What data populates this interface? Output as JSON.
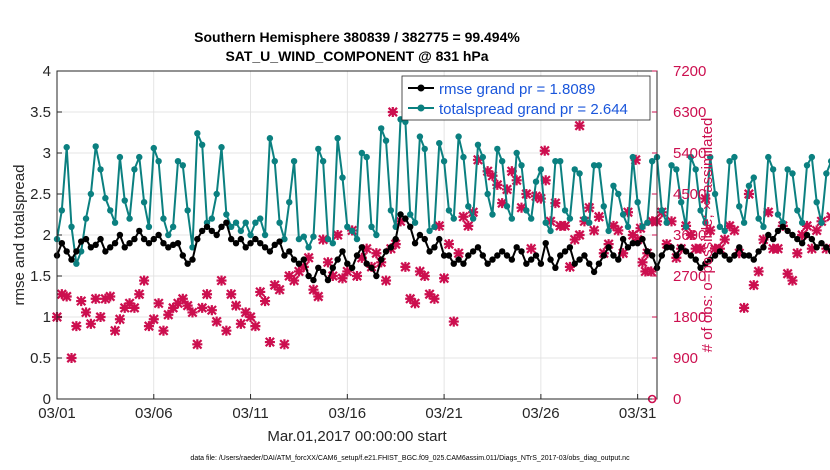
{
  "chart_data": {
    "type": "line",
    "title": "Southern Hemisphere 380839 / 382775 = 99.494%",
    "subtitle": "SAT_U_WIND_COMPONENT @ 831 hPa",
    "xlabel": "Mar.01,2017 00:00:00 start",
    "ylabel_left": "rmse and totalspread",
    "ylabel_right": "# of obs: o=possible; ×=assimilated",
    "footer": "data file: /Users/raeder/DAI/ATM_forcXX/CAM6_setup/f.e21.FHIST_BGC.f09_025.CAM6assim.011/Diags_NTrS_2017-03/obs_diag_output.nc",
    "x_ticks": [
      {
        "label": "03/01",
        "day": 1
      },
      {
        "label": "03/06",
        "day": 6
      },
      {
        "label": "03/11",
        "day": 11
      },
      {
        "label": "03/16",
        "day": 16
      },
      {
        "label": "03/21",
        "day": 21
      },
      {
        "label": "03/26",
        "day": 26
      },
      {
        "label": "03/31",
        "day": 31
      }
    ],
    "xlim": [
      1,
      32
    ],
    "ylim_left": [
      0,
      4
    ],
    "yticks_left": [
      "0",
      "0.5",
      "1",
      "1.5",
      "2",
      "2.5",
      "3",
      "3.5",
      "4"
    ],
    "ylim_right": [
      0,
      7200
    ],
    "yticks_right": [
      "0",
      "900",
      "1800",
      "2700",
      "3600",
      "4500",
      "5400",
      "6300",
      "7200"
    ],
    "colors": {
      "rmse": "#000000",
      "spread": "#0b8080",
      "obs": "#cc0f4f",
      "legend_text": "#1a56db",
      "right_axis": "#cc0f4f"
    },
    "legend": [
      {
        "label": "rmse grand pr = 1.8089",
        "series": "rmse"
      },
      {
        "label": "totalspread grand pr = 2.644",
        "series": "spread"
      }
    ],
    "x_start_day": 1,
    "x_step_days": 0.25,
    "series": [
      {
        "name": "rmse",
        "axis": "left",
        "values": [
          1.75,
          1.9,
          1.8,
          1.7,
          1.8,
          1.92,
          1.95,
          1.85,
          1.88,
          1.95,
          1.8,
          1.85,
          1.9,
          2.0,
          1.85,
          1.9,
          1.95,
          2.05,
          1.95,
          1.9,
          1.95,
          2.0,
          1.9,
          1.85,
          1.88,
          1.9,
          1.75,
          1.65,
          1.7,
          1.95,
          2.05,
          2.1,
          2.05,
          2.0,
          2.1,
          2.15,
          1.95,
          1.9,
          1.95,
          1.85,
          1.9,
          1.95,
          1.9,
          1.85,
          1.8,
          1.88,
          1.92,
          1.75,
          1.8,
          1.7,
          1.65,
          1.7,
          1.5,
          1.45,
          1.6,
          1.55,
          1.45,
          1.6,
          1.7,
          1.8,
          1.65,
          1.6,
          1.75,
          1.85,
          1.65,
          1.6,
          1.5,
          1.7,
          1.8,
          1.85,
          1.95,
          2.25,
          2.2,
          2.1,
          1.9,
          2.0,
          1.95,
          1.8,
          1.85,
          1.95,
          1.75,
          1.75,
          1.65,
          1.7,
          1.65,
          1.75,
          1.8,
          1.85,
          1.75,
          1.65,
          1.7,
          1.75,
          1.8,
          1.75,
          1.7,
          1.85,
          1.8,
          1.65,
          1.7,
          1.75,
          1.65,
          1.9,
          1.7,
          1.6,
          1.75,
          1.8,
          1.85,
          1.65,
          1.7,
          1.75,
          1.65,
          1.55,
          1.65,
          1.75,
          1.85,
          1.75,
          1.7,
          1.95,
          1.85,
          1.9,
          1.9,
          1.95,
          1.8,
          1.75,
          1.6,
          1.75,
          1.85,
          1.85,
          1.75,
          1.85,
          1.8,
          1.75,
          1.7,
          1.6,
          1.65,
          1.7,
          1.75,
          1.8,
          1.75,
          1.7,
          1.75,
          1.85,
          1.75,
          1.75,
          1.7,
          1.8,
          1.85,
          2.0,
          1.95,
          2.05,
          2.1,
          2.05,
          2.0,
          1.95,
          1.9,
          2.0,
          1.95,
          1.85,
          1.9,
          1.85,
          1.8,
          1.75,
          1.65,
          1.85,
          1.8,
          1.7,
          1.65,
          1.85,
          1.95,
          1.95,
          1.9,
          1.85,
          1.75,
          1.7,
          1.8,
          1.9,
          1.85,
          2.0,
          2.15,
          2.1,
          2.0,
          1.88,
          1.87
        ]
      },
      {
        "name": "totalspread",
        "axis": "left",
        "values": [
          1.95,
          2.3,
          3.07,
          2.1,
          1.65,
          1.8,
          2.2,
          2.5,
          3.08,
          2.8,
          2.45,
          2.3,
          2.15,
          2.95,
          2.42,
          2.2,
          2.8,
          2.95,
          2.4,
          2.1,
          3.06,
          2.9,
          2.2,
          2.0,
          2.1,
          2.9,
          2.85,
          2.3,
          1.85,
          3.24,
          3.1,
          2.15,
          2.2,
          2.5,
          3.07,
          2.25,
          2.1,
          2.15,
          2.05,
          2.15,
          2.0,
          2.15,
          2.2,
          2.0,
          3.18,
          2.9,
          2.15,
          1.95,
          2.4,
          2.9,
          1.95,
          1.98,
          1.85,
          1.98,
          3.05,
          2.9,
          1.95,
          1.9,
          3.18,
          2.7,
          2.1,
          2.05,
          1.95,
          3.0,
          2.95,
          2.1,
          2.0,
          3.3,
          3.15,
          2.3,
          2.1,
          3.41,
          3.38,
          2.25,
          2.15,
          3.2,
          3.05,
          2.05,
          2.1,
          3.12,
          2.9,
          2.3,
          2.2,
          3.2,
          2.95,
          2.35,
          2.2,
          3.1,
          2.95,
          2.5,
          2.25,
          3.05,
          2.9,
          2.35,
          2.2,
          3.0,
          2.85,
          2.3,
          2.2,
          2.65,
          2.8,
          2.15,
          2.05,
          2.9,
          2.9,
          2.3,
          2.2,
          2.8,
          2.75,
          2.2,
          2.15,
          2.85,
          2.85,
          2.35,
          2.05,
          2.6,
          2.5,
          2.25,
          2.1,
          2.95,
          2.4,
          2.1,
          2.15,
          2.9,
          2.95,
          2.3,
          2.15,
          2.85,
          2.8,
          2.4,
          2.1,
          2.95,
          2.8,
          2.3,
          2.15,
          2.95,
          2.5,
          2.1,
          2.05,
          2.9,
          2.95,
          2.35,
          2.15,
          2.6,
          2.7,
          2.2,
          2.1,
          2.95,
          2.8,
          2.25,
          2.15,
          2.8,
          2.75,
          2.3,
          2.15,
          2.85,
          2.95,
          2.4,
          2.15,
          2.75,
          2.9,
          2.45,
          2.2,
          2.85,
          2.95,
          2.5,
          2.2,
          2.85,
          2.9,
          2.35,
          2.2,
          2.75,
          2.8,
          2.5,
          2.3,
          2.8,
          2.9,
          2.5,
          2.3,
          3.0,
          3.1,
          2.55,
          2.2,
          2.9,
          3.02,
          2.5,
          2.15,
          3.15,
          3.2,
          3.22
        ]
      },
      {
        "name": "obs_assimilated",
        "axis": "right",
        "marker": "x",
        "values": [
          1800,
          2300,
          2250,
          900,
          1600,
          2150,
          1900,
          1650,
          2200,
          1800,
          2200,
          2250,
          1500,
          1750,
          2000,
          2100,
          2000,
          2300,
          2600,
          1600,
          1750,
          2100,
          1500,
          1850,
          2000,
          2100,
          2200,
          2050,
          1900,
          1200,
          2000,
          2300,
          1950,
          1700,
          2600,
          1500,
          2300,
          2050,
          1650,
          1900,
          1800,
          1600,
          2350,
          2150,
          1250,
          2500,
          2400,
          1200,
          2700,
          2600,
          2800,
          2900,
          3100,
          2400,
          2250,
          3500,
          3000,
          2700,
          3600,
          2650,
          2800,
          3700,
          2700,
          3100,
          3300,
          2900,
          3200,
          3000,
          2600,
          3300,
          3400,
          3900,
          2900,
          2200,
          2100,
          2800,
          2700,
          2300,
          2200,
          3800,
          2650,
          3400,
          1700,
          3200,
          4000,
          3800,
          4100,
          5250,
          6300,
          5000,
          4900,
          4700,
          4300,
          4600,
          5000,
          4800,
          4200,
          4500,
          3300,
          4450,
          4400,
          4800,
          3900,
          4300,
          3800,
          3800,
          2900,
          3500,
          3600,
          3900,
          4200,
          3700,
          4000,
          3200,
          3400,
          3800,
          3700,
          3200,
          4100,
          3600,
          3500,
          3000,
          3200,
          3900,
          3900,
          4100,
          3400,
          3900,
          3100,
          3300,
          3800,
          3600,
          3300,
          3300,
          4400,
          3700,
          3300,
          3300,
          3500,
          3800,
          3700,
          3200,
          2000,
          4500,
          2500,
          2800,
          3500,
          4100,
          3300,
          3300,
          3800,
          2750,
          2600,
          3200,
          3600,
          3800,
          3300,
          3700,
          3900,
          3300,
          4000,
          3100,
          4900,
          3800,
          3900,
          3200,
          4800,
          4800,
          5500,
          3600,
          4600,
          5300,
          3000,
          3200,
          4100,
          3600,
          3600,
          4300,
          3500,
          5400,
          2400,
          2900,
          3600,
          4200,
          1500,
          2800,
          3500,
          2800
        ]
      },
      {
        "name": "obs_assimilated_extra",
        "axis": "right",
        "marker": "x",
        "points": [
          {
            "x": 18.35,
            "y": 6300
          },
          {
            "x": 26.2,
            "y": 5450
          },
          {
            "x": 28.0,
            "y": 6000
          },
          {
            "x": 30.9,
            "y": 5250
          },
          {
            "x": 31.15,
            "y": 3750
          },
          {
            "x": 31.4,
            "y": 2800
          },
          {
            "x": 31.7,
            "y": 2800
          }
        ]
      },
      {
        "name": "obs_possible",
        "axis": "right",
        "marker": "o",
        "points": [
          {
            "x": 31.75,
            "y": 0
          }
        ]
      }
    ]
  }
}
